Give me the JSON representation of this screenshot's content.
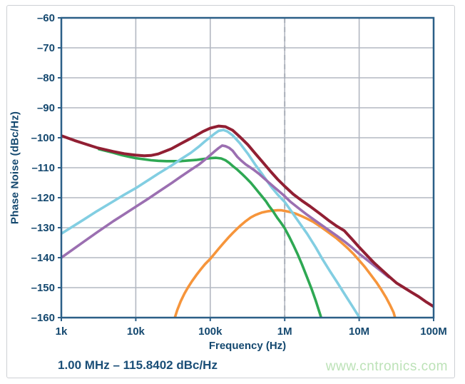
{
  "page": {
    "watermark": "www.cntronics.com"
  },
  "chart_data": {
    "type": "line",
    "title": "",
    "xlabel": "Frequency (Hz)",
    "ylabel": "Phase Noise (dBc/Hz)",
    "x_scale": "log",
    "xlim": [
      1000,
      100000000
    ],
    "ylim": [
      -160,
      -60
    ],
    "grid": true,
    "legend": "none",
    "annotation": "1.00 MHz – 115.8402 dBc/Hz",
    "marker_line": {
      "x": 1000000,
      "style": "dashed",
      "color": "#a9aeb8"
    },
    "x_ticks": [
      {
        "value": 1000,
        "label": "1k"
      },
      {
        "value": 10000,
        "label": "10k"
      },
      {
        "value": 100000,
        "label": "100k"
      },
      {
        "value": 1000000,
        "label": "1M"
      },
      {
        "value": 10000000,
        "label": "10M"
      },
      {
        "value": 100000000,
        "label": "100M"
      }
    ],
    "y_ticks": [
      {
        "value": -60,
        "label": "–60"
      },
      {
        "value": -70,
        "label": "–70"
      },
      {
        "value": -80,
        "label": "–80"
      },
      {
        "value": -90,
        "label": "–90"
      },
      {
        "value": -100,
        "label": "–100"
      },
      {
        "value": -110,
        "label": "–110"
      },
      {
        "value": -120,
        "label": "–120"
      },
      {
        "value": -130,
        "label": "–130"
      },
      {
        "value": -140,
        "label": "–140"
      },
      {
        "value": -150,
        "label": "–150"
      },
      {
        "value": -160,
        "label": "–160"
      }
    ],
    "series": [
      {
        "name": "orange",
        "color": "#f6953b",
        "width": 3.6,
        "points": [
          [
            33000,
            -160.5
          ],
          [
            36000,
            -157.5
          ],
          [
            40000,
            -154.6
          ],
          [
            45000,
            -152
          ],
          [
            50000,
            -150
          ],
          [
            57000,
            -147.8
          ],
          [
            65000,
            -145.8
          ],
          [
            75000,
            -143.8
          ],
          [
            85000,
            -142.2
          ],
          [
            100000,
            -140.4
          ],
          [
            115000,
            -138.6
          ],
          [
            130000,
            -137
          ],
          [
            150000,
            -135.2
          ],
          [
            175000,
            -133.3
          ],
          [
            200000,
            -131.8
          ],
          [
            230000,
            -130.3
          ],
          [
            260000,
            -129.1
          ],
          [
            300000,
            -127.8
          ],
          [
            350000,
            -126.6
          ],
          [
            400000,
            -125.8
          ],
          [
            450000,
            -125.3
          ],
          [
            500000,
            -124.9
          ],
          [
            600000,
            -124.5
          ],
          [
            700000,
            -124.3
          ],
          [
            800000,
            -124.2
          ],
          [
            900000,
            -124.2
          ],
          [
            1000000,
            -124.4
          ],
          [
            1200000,
            -124.8
          ],
          [
            1400000,
            -125.3
          ],
          [
            1700000,
            -126.2
          ],
          [
            2000000,
            -127
          ],
          [
            2400000,
            -128
          ],
          [
            3000000,
            -129.6
          ],
          [
            3600000,
            -131
          ],
          [
            4300000,
            -132.4
          ],
          [
            5000000,
            -133.6
          ],
          [
            6000000,
            -135.3
          ],
          [
            7000000,
            -136.8
          ],
          [
            8500000,
            -138.9
          ],
          [
            10000000,
            -140.9
          ],
          [
            12000000,
            -143.2
          ],
          [
            14000000,
            -145.4
          ],
          [
            17000000,
            -148.2
          ],
          [
            20000000,
            -150.8
          ],
          [
            23000000,
            -153.3
          ],
          [
            26000000,
            -155.8
          ],
          [
            29000000,
            -158.3
          ],
          [
            31000000,
            -160.8
          ]
        ]
      },
      {
        "name": "green",
        "color": "#2ea853",
        "width": 3.6,
        "points": [
          [
            3200,
            -103.8
          ],
          [
            4000,
            -104.4
          ],
          [
            5000,
            -105
          ],
          [
            6500,
            -105.8
          ],
          [
            8000,
            -106.3
          ],
          [
            10000,
            -106.8
          ],
          [
            13000,
            -107.2
          ],
          [
            16000,
            -107.5
          ],
          [
            20000,
            -107.7
          ],
          [
            26000,
            -107.8
          ],
          [
            32000,
            -107.8
          ],
          [
            40000,
            -107.8
          ],
          [
            50000,
            -107.6
          ],
          [
            65000,
            -107.4
          ],
          [
            80000,
            -107.1
          ],
          [
            100000,
            -106.8
          ],
          [
            120000,
            -106.7
          ],
          [
            140000,
            -106.9
          ],
          [
            160000,
            -107.5
          ],
          [
            180000,
            -108.4
          ],
          [
            200000,
            -109.4
          ],
          [
            232000,
            -110.7
          ],
          [
            270000,
            -112.2
          ],
          [
            300000,
            -113.3
          ],
          [
            350000,
            -115
          ],
          [
            390000,
            -116.4
          ],
          [
            450000,
            -118.3
          ],
          [
            500000,
            -119.7
          ],
          [
            560000,
            -121.2
          ],
          [
            610000,
            -122.6
          ],
          [
            700000,
            -124.6
          ],
          [
            800000,
            -126.8
          ],
          [
            900000,
            -128.5
          ],
          [
            1000000,
            -130.2
          ],
          [
            1150000,
            -133
          ],
          [
            1300000,
            -135.7
          ],
          [
            1500000,
            -139
          ],
          [
            1700000,
            -142.2
          ],
          [
            2000000,
            -146.6
          ],
          [
            2300000,
            -150.5
          ],
          [
            2600000,
            -154.2
          ],
          [
            3000000,
            -159
          ],
          [
            3300000,
            -162.5
          ]
        ]
      },
      {
        "name": "cyan",
        "color": "#82cee2",
        "width": 3.6,
        "points": [
          [
            1000,
            -132
          ],
          [
            2000,
            -127.3
          ],
          [
            3000,
            -124.5
          ],
          [
            5000,
            -121.2
          ],
          [
            7000,
            -119
          ],
          [
            10000,
            -116.8
          ],
          [
            15000,
            -114
          ],
          [
            20000,
            -112
          ],
          [
            30000,
            -109.3
          ],
          [
            40000,
            -107.2
          ],
          [
            55000,
            -105
          ],
          [
            70000,
            -103
          ],
          [
            85000,
            -101.2
          ],
          [
            100000,
            -99.8
          ],
          [
            115000,
            -98.6
          ],
          [
            130000,
            -97.7
          ],
          [
            150000,
            -97.4
          ],
          [
            170000,
            -97.9
          ],
          [
            200000,
            -99.2
          ],
          [
            250000,
            -101.8
          ],
          [
            320000,
            -105.3
          ],
          [
            400000,
            -108.9
          ],
          [
            500000,
            -112.2
          ],
          [
            650000,
            -116.2
          ],
          [
            800000,
            -118.9
          ],
          [
            1000000,
            -121.4
          ],
          [
            1300000,
            -125.4
          ],
          [
            1600000,
            -128.6
          ],
          [
            2000000,
            -132
          ],
          [
            2600000,
            -136.5
          ],
          [
            3200000,
            -140.4
          ],
          [
            4000000,
            -144.3
          ],
          [
            5000000,
            -148
          ],
          [
            6500000,
            -152.5
          ],
          [
            8000000,
            -156
          ],
          [
            10000000,
            -159.8
          ],
          [
            11500000,
            -162.5
          ]
        ]
      },
      {
        "name": "purple",
        "color": "#9b6fb1",
        "width": 3.6,
        "points": [
          [
            1000,
            -140
          ],
          [
            2000,
            -134.7
          ],
          [
            3000,
            -131.6
          ],
          [
            5000,
            -127.8
          ],
          [
            7000,
            -125.5
          ],
          [
            10000,
            -123
          ],
          [
            15000,
            -120.2
          ],
          [
            20000,
            -118.1
          ],
          [
            30000,
            -115.2
          ],
          [
            40000,
            -113
          ],
          [
            55000,
            -110.7
          ],
          [
            70000,
            -109
          ],
          [
            85000,
            -107.3
          ],
          [
            100000,
            -105.8
          ],
          [
            115000,
            -104.5
          ],
          [
            130000,
            -103.4
          ],
          [
            145000,
            -102.6
          ],
          [
            160000,
            -102.8
          ],
          [
            180000,
            -103.4
          ],
          [
            200000,
            -104.3
          ],
          [
            230000,
            -106.3
          ],
          [
            260000,
            -107.6
          ],
          [
            300000,
            -108.9
          ],
          [
            350000,
            -110
          ],
          [
            390000,
            -110.8
          ],
          [
            450000,
            -112
          ],
          [
            500000,
            -113
          ],
          [
            610000,
            -114.9
          ],
          [
            700000,
            -116.2
          ],
          [
            800000,
            -117.4
          ],
          [
            900000,
            -118.5
          ],
          [
            1000000,
            -119.5
          ],
          [
            1200000,
            -121.4
          ],
          [
            1500000,
            -123.3
          ],
          [
            2000000,
            -125.7
          ],
          [
            2500000,
            -127.4
          ],
          [
            3000000,
            -128.8
          ],
          [
            4000000,
            -131
          ],
          [
            5000000,
            -132.7
          ],
          [
            6500000,
            -134.8
          ],
          [
            8000000,
            -136.6
          ],
          [
            10000000,
            -138.7
          ],
          [
            13000000,
            -140.9
          ],
          [
            16000000,
            -142.7
          ],
          [
            20000000,
            -144.6
          ],
          [
            25000000,
            -146.5
          ]
        ]
      },
      {
        "name": "dark-red",
        "color": "#911f33",
        "width": 4,
        "points": [
          [
            1000,
            -99.3
          ],
          [
            1500,
            -100.9
          ],
          [
            2000,
            -101.9
          ],
          [
            3000,
            -103.3
          ],
          [
            5000,
            -104.6
          ],
          [
            7000,
            -105.3
          ],
          [
            10000,
            -105.8
          ],
          [
            13000,
            -106
          ],
          [
            16000,
            -105.9
          ],
          [
            20000,
            -105.4
          ],
          [
            30000,
            -103.7
          ],
          [
            40000,
            -102
          ],
          [
            60000,
            -99.7
          ],
          [
            80000,
            -97.9
          ],
          [
            100000,
            -96.8
          ],
          [
            130000,
            -96.1
          ],
          [
            160000,
            -96.3
          ],
          [
            200000,
            -97.5
          ],
          [
            250000,
            -99.7
          ],
          [
            320000,
            -102.3
          ],
          [
            400000,
            -105.2
          ],
          [
            500000,
            -108
          ],
          [
            650000,
            -111.3
          ],
          [
            800000,
            -113.8
          ],
          [
            1000000,
            -116.2
          ],
          [
            1300000,
            -118.8
          ],
          [
            1700000,
            -121
          ],
          [
            2200000,
            -122.9
          ],
          [
            3000000,
            -125.4
          ],
          [
            4000000,
            -127.8
          ],
          [
            5000000,
            -129.5
          ],
          [
            6300000,
            -131
          ],
          [
            8000000,
            -133.8
          ],
          [
            10000000,
            -136.5
          ],
          [
            13000000,
            -139.5
          ],
          [
            16000000,
            -141.8
          ],
          [
            20000000,
            -144
          ],
          [
            25000000,
            -146.2
          ],
          [
            32000000,
            -148.5
          ],
          [
            40000000,
            -150
          ],
          [
            50000000,
            -151.5
          ],
          [
            63000000,
            -153
          ],
          [
            80000000,
            -154.8
          ],
          [
            100000000,
            -156.3
          ]
        ]
      }
    ],
    "style": {
      "frame_color": "#2b5f87",
      "grid_color": "#b3b8c2",
      "tick_text_color": "#14486f",
      "background": "#ffffff"
    }
  }
}
